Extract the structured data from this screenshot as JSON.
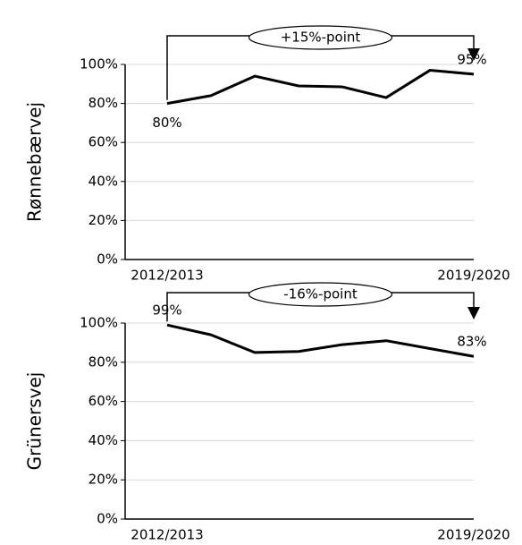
{
  "chart_data": [
    {
      "type": "line",
      "ylabel": "Rønnebærvej",
      "annotation": "+15%-point",
      "categories": [
        "2012/2013",
        null,
        null,
        null,
        null,
        null,
        null,
        "2019/2020"
      ],
      "values": [
        80,
        84,
        94,
        89,
        88.5,
        83,
        97,
        95
      ],
      "value_labels": [
        "80%",
        null,
        null,
        null,
        null,
        null,
        null,
        "95%"
      ],
      "color": "#000000",
      "grid": true,
      "ylim": [
        0,
        100
      ],
      "yticks": [
        {
          "value": 0,
          "label": "0%"
        },
        {
          "value": 20,
          "label": "20%"
        },
        {
          "value": 40,
          "label": "40%"
        },
        {
          "value": 60,
          "label": "60%"
        },
        {
          "value": 80,
          "label": "80%"
        },
        {
          "value": 100,
          "label": "100%"
        }
      ]
    },
    {
      "type": "line",
      "ylabel": "Grünersvej",
      "annotation": "-16%-point",
      "categories": [
        "2012/2013",
        null,
        null,
        null,
        null,
        null,
        null,
        "2019/2020"
      ],
      "values": [
        99,
        94,
        85,
        85.5,
        89,
        91,
        87,
        83
      ],
      "value_labels": [
        "99%",
        null,
        null,
        null,
        null,
        null,
        null,
        "83%"
      ],
      "color": "#000000",
      "grid": true,
      "ylim": [
        0,
        100
      ],
      "yticks": [
        {
          "value": 0,
          "label": "0%"
        },
        {
          "value": 20,
          "label": "20%"
        },
        {
          "value": 40,
          "label": "40%"
        },
        {
          "value": 60,
          "label": "60%"
        },
        {
          "value": 80,
          "label": "80%"
        },
        {
          "value": 100,
          "label": "100%"
        }
      ]
    }
  ]
}
